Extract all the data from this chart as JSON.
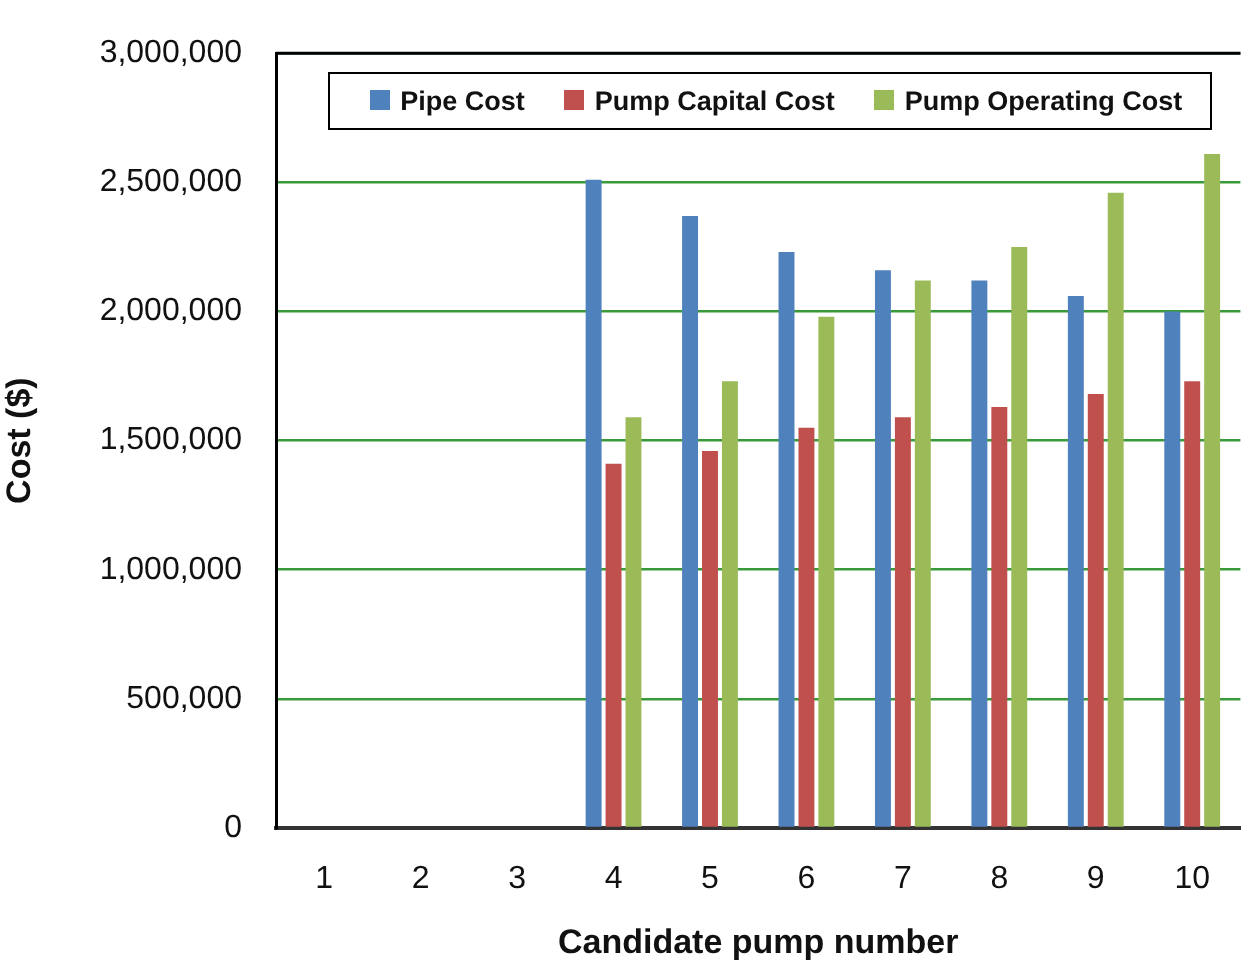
{
  "chart_data": {
    "type": "bar",
    "xlabel": "Candidate pump number",
    "ylabel": "Cost ($)",
    "categories": [
      "1",
      "2",
      "3",
      "4",
      "5",
      "6",
      "7",
      "8",
      "9",
      "10"
    ],
    "series": [
      {
        "name": "Pipe Cost",
        "color": "#4f81bd",
        "values": [
          null,
          null,
          null,
          2510000,
          2370000,
          2230000,
          2160000,
          2120000,
          2060000,
          2000000
        ]
      },
      {
        "name": "Pump Capital Cost",
        "color": "#c0504d",
        "values": [
          null,
          null,
          null,
          1410000,
          1460000,
          1550000,
          1590000,
          1630000,
          1680000,
          1730000
        ]
      },
      {
        "name": "Pump Operating Cost",
        "color": "#9bbb59",
        "values": [
          null,
          null,
          null,
          1590000,
          1730000,
          1980000,
          2120000,
          2250000,
          2460000,
          2610000
        ]
      }
    ],
    "ylim": [
      0,
      3000000
    ],
    "yticks": [
      {
        "value": 0,
        "label": "0"
      },
      {
        "value": 500000,
        "label": "500,000"
      },
      {
        "value": 1000000,
        "label": "1,000,000"
      },
      {
        "value": 1500000,
        "label": "1,500,000"
      },
      {
        "value": 2000000,
        "label": "2,000,000"
      },
      {
        "value": 2500000,
        "label": "2,500,000"
      },
      {
        "value": 3000000,
        "label": "3,000,000"
      }
    ],
    "grid": "y",
    "legend": "top"
  }
}
